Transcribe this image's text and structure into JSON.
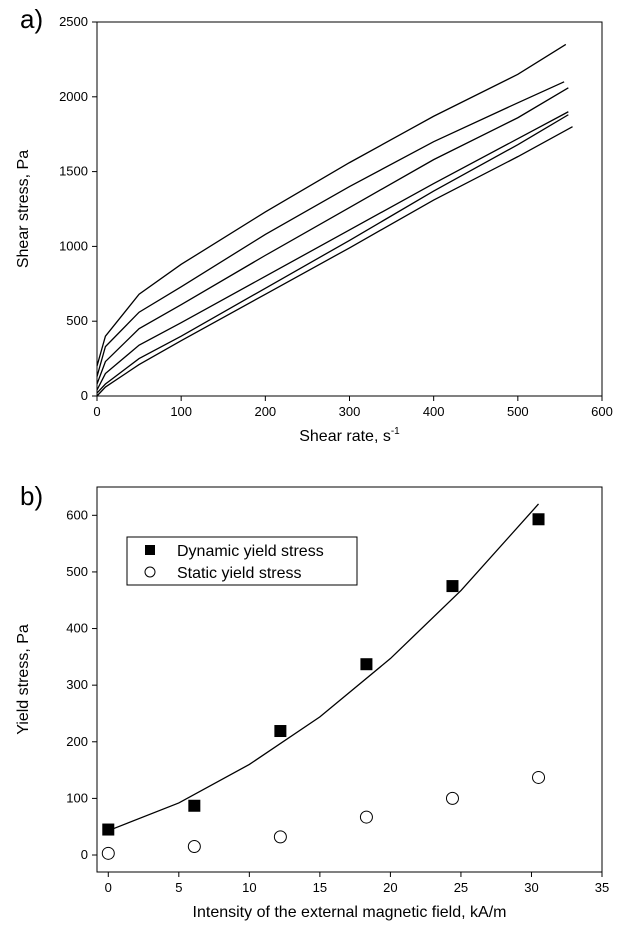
{
  "chart_data": [
    {
      "type": "line",
      "panel_label": "a)",
      "x_label": "Shear rate, s",
      "x_label_superscript": "-1",
      "y_label": "Shear stress, Pa",
      "xlim": [
        0,
        600
      ],
      "ylim": [
        0,
        2500
      ],
      "xticks": [
        0,
        100,
        200,
        300,
        400,
        500,
        600
      ],
      "yticks": [
        0,
        500,
        1000,
        1500,
        2000,
        2500
      ],
      "color": "#000000",
      "series": [
        {
          "x": [
            0,
            10,
            50,
            100,
            200,
            300,
            400,
            500,
            557
          ],
          "values": [
            200,
            400,
            680,
            880,
            1230,
            1560,
            1870,
            2150,
            2350
          ]
        },
        {
          "x": [
            0,
            10,
            50,
            100,
            200,
            300,
            400,
            500,
            555
          ],
          "values": [
            130,
            330,
            560,
            730,
            1080,
            1400,
            1700,
            1960,
            2100
          ]
        },
        {
          "x": [
            0,
            10,
            50,
            100,
            200,
            300,
            400,
            500,
            560
          ],
          "values": [
            80,
            230,
            450,
            610,
            940,
            1260,
            1580,
            1860,
            2060
          ]
        },
        {
          "x": [
            0,
            10,
            50,
            100,
            200,
            300,
            400,
            500,
            560
          ],
          "values": [
            40,
            150,
            340,
            490,
            800,
            1110,
            1420,
            1720,
            1900
          ]
        },
        {
          "x": [
            0,
            10,
            50,
            100,
            200,
            300,
            400,
            500,
            560
          ],
          "values": [
            20,
            80,
            250,
            400,
            720,
            1040,
            1370,
            1680,
            1880
          ]
        },
        {
          "x": [
            0,
            10,
            50,
            100,
            200,
            300,
            400,
            500,
            565
          ],
          "values": [
            0,
            60,
            210,
            370,
            680,
            990,
            1310,
            1600,
            1800
          ]
        }
      ]
    },
    {
      "type": "scatter",
      "panel_label": "b)",
      "x_label": "Intensity of the external magnetic field, kA/m",
      "y_label": "Yield stress, Pa",
      "xlim": [
        -0.8,
        35
      ],
      "ylim": [
        -30,
        650
      ],
      "xticks": [
        0,
        5,
        10,
        15,
        20,
        25,
        30,
        35
      ],
      "yticks": [
        0,
        100,
        200,
        300,
        400,
        500,
        600
      ],
      "legend": "upper left",
      "color": "#000000",
      "series": [
        {
          "name": "Dynamic yield stress",
          "style": "square",
          "x": [
            0,
            6.1,
            12.2,
            18.3,
            24.4,
            30.5
          ],
          "values": [
            45,
            87,
            219,
            337,
            475,
            593
          ]
        },
        {
          "name": "Static yield stress",
          "style": "circle",
          "x": [
            0,
            6.1,
            12.2,
            18.3,
            24.4,
            30.5
          ],
          "values": [
            3,
            15,
            32,
            67,
            100,
            137
          ]
        },
        {
          "style": "line",
          "x": [
            0,
            5,
            10,
            15,
            20,
            25,
            30.5
          ],
          "values": [
            43,
            92,
            160,
            244,
            347,
            467,
            620
          ]
        }
      ]
    }
  ]
}
